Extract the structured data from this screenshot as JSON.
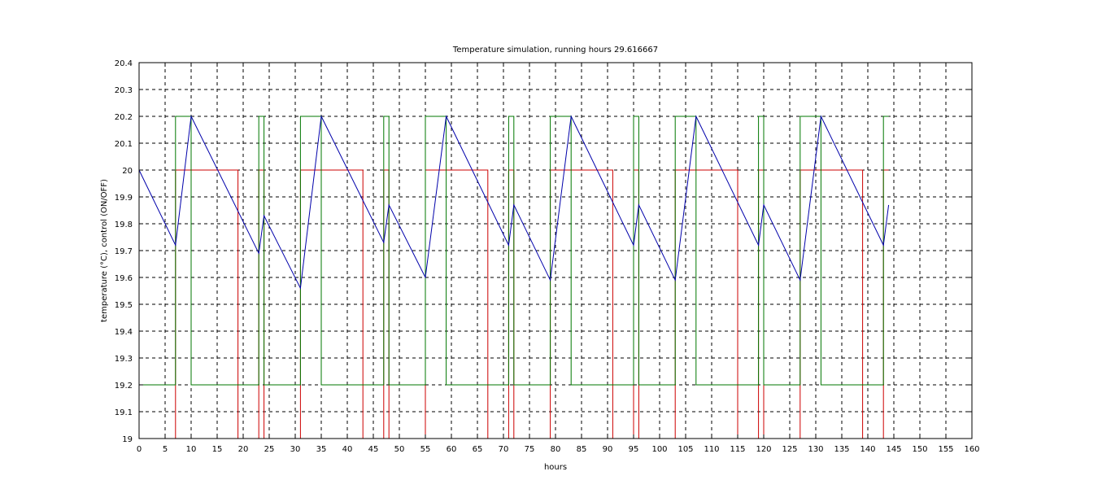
{
  "chart_data": {
    "type": "line",
    "title": "Temperature simulation, running hours 29.616667",
    "xlabel": "hours",
    "ylabel": "temperature (°C), control (ON/OFF)",
    "xlim": [
      0,
      160
    ],
    "ylim": [
      19,
      20.4
    ],
    "xticks": [
      0,
      5,
      10,
      15,
      20,
      25,
      30,
      35,
      40,
      45,
      50,
      55,
      60,
      65,
      70,
      75,
      80,
      85,
      90,
      95,
      100,
      105,
      110,
      115,
      120,
      125,
      130,
      135,
      140,
      145,
      150,
      155,
      160
    ],
    "yticks": [
      19,
      19.1,
      19.2,
      19.3,
      19.4,
      19.5,
      19.6,
      19.7,
      19.8,
      19.9,
      20,
      20.1,
      20.2,
      20.3,
      20.4
    ],
    "grid": true,
    "series": [
      {
        "color": "#cc0000",
        "step": true,
        "x": [
          0,
          7,
          7,
          19,
          19,
          23,
          23,
          24,
          24,
          31,
          31,
          43,
          43,
          47,
          47,
          48,
          48,
          55,
          55,
          67,
          67,
          71,
          71,
          72,
          72,
          79,
          79,
          91,
          91,
          95,
          95,
          96,
          96,
          103,
          103,
          115,
          115,
          119,
          119,
          120,
          120,
          127,
          127,
          139,
          139,
          143,
          143,
          144
        ],
        "y": [
          19,
          19,
          20,
          20,
          19,
          19,
          20,
          20,
          19,
          19,
          20,
          20,
          19,
          19,
          20,
          20,
          19,
          19,
          20,
          20,
          19,
          19,
          20,
          20,
          19,
          19,
          20,
          20,
          19,
          19,
          20,
          20,
          19,
          19,
          20,
          20,
          19,
          19,
          20,
          20,
          19,
          19,
          20,
          20,
          19,
          19,
          20,
          20
        ]
      },
      {
        "color": "#007700",
        "step": true,
        "x": [
          0,
          7,
          7,
          10,
          10,
          23,
          23,
          24,
          24,
          31,
          31,
          35,
          35,
          47,
          47,
          48,
          48,
          55,
          55,
          59,
          59,
          71,
          71,
          72,
          72,
          79,
          79,
          83,
          83,
          95,
          95,
          96,
          96,
          103,
          103,
          107,
          107,
          119,
          119,
          120,
          120,
          127,
          127,
          131,
          131,
          143,
          143,
          144
        ],
        "y": [
          19.2,
          19.2,
          20.2,
          20.2,
          19.2,
          19.2,
          20.2,
          20.2,
          19.2,
          19.2,
          20.2,
          20.2,
          19.2,
          19.2,
          20.2,
          20.2,
          19.2,
          19.2,
          20.2,
          20.2,
          19.2,
          19.2,
          20.2,
          20.2,
          19.2,
          19.2,
          20.2,
          20.2,
          19.2,
          19.2,
          20.2,
          20.2,
          19.2,
          19.2,
          20.2,
          20.2,
          19.2,
          19.2,
          20.2,
          20.2,
          19.2,
          19.2,
          20.2,
          20.2,
          19.2,
          19.2,
          20.2,
          20.2
        ]
      },
      {
        "color": "#0000aa",
        "step": false,
        "x": [
          0,
          7,
          10,
          23,
          24,
          31,
          35,
          47,
          48,
          55,
          59,
          71,
          72,
          79,
          83,
          95,
          96,
          103,
          107,
          119,
          120,
          127,
          131,
          143,
          144
        ],
        "y": [
          20,
          19.72,
          20.2,
          19.69,
          19.83,
          19.56,
          20.2,
          19.73,
          19.87,
          19.6,
          20.2,
          19.72,
          19.87,
          19.59,
          20.2,
          19.72,
          19.87,
          19.59,
          20.2,
          19.72,
          19.87,
          19.59,
          20.2,
          19.72,
          19.87
        ]
      }
    ]
  }
}
